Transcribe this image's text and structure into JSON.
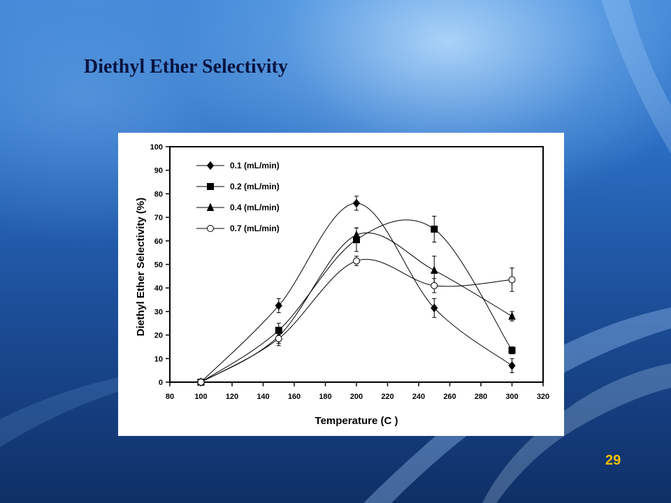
{
  "slide": {
    "title": "Diethyl Ether Selectivity",
    "page_number": "29"
  },
  "chart_data": {
    "type": "scatter",
    "title": "",
    "xlabel": "Temperature (C )",
    "ylabel": "Diethyl Ether Selectivity (%)",
    "xlim": [
      80,
      320
    ],
    "ylim": [
      0,
      100
    ],
    "x_ticks": [
      80,
      100,
      120,
      140,
      160,
      180,
      200,
      220,
      240,
      260,
      280,
      300,
      320
    ],
    "y_ticks": [
      0,
      10,
      20,
      30,
      40,
      50,
      60,
      70,
      80,
      90,
      100
    ],
    "grid": false,
    "legend_position": "top-left",
    "series": [
      {
        "name": "0.1 (mL/min)",
        "marker": "diamond",
        "fill": "#000000",
        "x": [
          100,
          150,
          200,
          250,
          300
        ],
        "y": [
          0,
          32.5,
          76,
          31.5,
          7
        ],
        "err": [
          0,
          3,
          3,
          4,
          3
        ]
      },
      {
        "name": "0.2 (mL/min)",
        "marker": "square",
        "fill": "#000000",
        "x": [
          100,
          150,
          200,
          250,
          300
        ],
        "y": [
          0,
          22,
          60.5,
          65,
          13.5
        ],
        "err": [
          0,
          3,
          5,
          5.5,
          1.5
        ]
      },
      {
        "name": "0.4 (mL/min)",
        "marker": "triangle",
        "fill": "#000000",
        "x": [
          100,
          150,
          200,
          250,
          300
        ],
        "y": [
          0,
          19.5,
          62.5,
          47.5,
          28
        ],
        "err": [
          0,
          3,
          3,
          6,
          2
        ]
      },
      {
        "name": "0.7 (mL/min)",
        "marker": "circle",
        "fill": "#ffffff",
        "x": [
          100,
          150,
          200,
          250,
          300
        ],
        "y": [
          0,
          18.5,
          51.5,
          41,
          43.5
        ],
        "err": [
          0,
          3,
          2,
          3,
          5
        ]
      }
    ]
  }
}
